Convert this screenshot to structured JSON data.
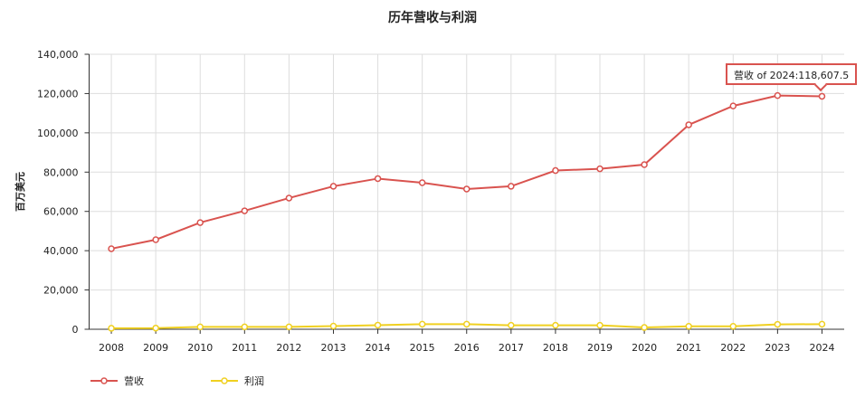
{
  "chart_data": {
    "type": "line",
    "title": "历年营收与利润",
    "xlabel": "",
    "ylabel": "百万美元",
    "ylim": [
      0,
      140000
    ],
    "yticks": [
      "0",
      "20,000",
      "40,000",
      "60,000",
      "80,000",
      "100,000",
      "120,000",
      "140,000"
    ],
    "categories": [
      "2008",
      "2009",
      "2010",
      "2011",
      "2012",
      "2013",
      "2014",
      "2015",
      "2016",
      "2017",
      "2018",
      "2019",
      "2020",
      "2021",
      "2022",
      "2023",
      "2024"
    ],
    "grid": true,
    "legend_position": "bottom-left",
    "series": [
      {
        "name": "营收",
        "color": "#d9534f",
        "values": [
          41000,
          45600,
          54300,
          60300,
          66800,
          72800,
          76700,
          74600,
          71400,
          72800,
          80800,
          81700,
          83800,
          104100,
          113700,
          119000,
          118607.5
        ]
      },
      {
        "name": "利润",
        "color": "#f0d020",
        "values": [
          500,
          600,
          1200,
          1200,
          1200,
          1600,
          2100,
          2600,
          2600,
          2000,
          2000,
          2000,
          900,
          1500,
          1500,
          2500,
          2600
        ]
      }
    ],
    "tooltip": "营收 of 2024:118,607.5"
  }
}
